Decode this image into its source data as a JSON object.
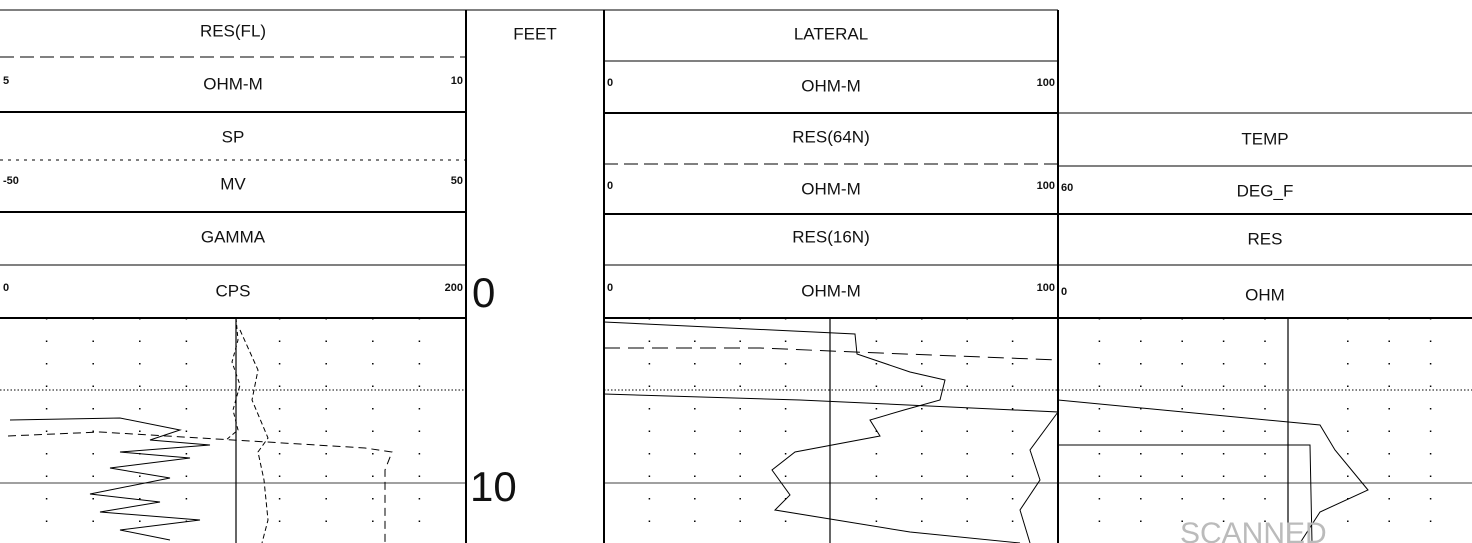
{
  "tracks": [
    {
      "curves": [
        {
          "name": "RES(FL)",
          "unit": "OHM-M",
          "left": 5,
          "right": 10
        },
        {
          "name": "SP",
          "unit": "MV",
          "left": -50,
          "right": 50
        },
        {
          "name": "GAMMA",
          "unit": "CPS",
          "left": 0,
          "right": 200
        }
      ]
    },
    {
      "curves": [
        {
          "name": "LATERAL",
          "unit": "OHM-M",
          "left": 0,
          "right": 100
        },
        {
          "name": "RES(64N)",
          "unit": "OHM-M",
          "left": 0,
          "right": 100
        },
        {
          "name": "RES(16N)",
          "unit": "OHM-M",
          "left": 0,
          "right": 100
        }
      ]
    },
    {
      "curves": [
        {
          "name": "TEMP",
          "unit": "DEG_F",
          "left": 60
        },
        {
          "name": "RES",
          "unit": "OHM",
          "left": 0
        }
      ]
    }
  ],
  "depth": {
    "header": "FEET",
    "labels": [
      "0",
      "10"
    ]
  },
  "watermark": "SCANNED"
}
